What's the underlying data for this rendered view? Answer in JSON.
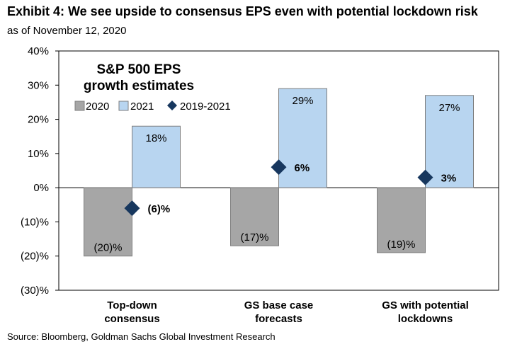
{
  "header": {
    "title": "Exhibit 4: We see upside to consensus EPS even with potential lockdown risk",
    "subtitle": "as of November 12, 2020"
  },
  "footer": {
    "source": "Source: Bloomberg, Goldman Sachs Global Investment Research"
  },
  "chart_data": {
    "type": "bar",
    "title": "S&P 500 EPS growth estimates",
    "title_lines": [
      "S&P 500 EPS",
      "growth estimates"
    ],
    "xlabel": "",
    "ylabel": "",
    "categories": [
      "Top-down consensus",
      "GS base case forecasts",
      "GS with potential lockdowns"
    ],
    "category_lines": [
      [
        "Top-down",
        "consensus"
      ],
      [
        "GS base case",
        "forecasts"
      ],
      [
        "GS with potential",
        "lockdowns"
      ]
    ],
    "series": [
      {
        "name": "2020",
        "type": "bar",
        "color": "#a6a6a6",
        "values": [
          -20,
          -17,
          -19
        ],
        "labels": [
          "(20)%",
          "(17)%",
          "(19)%"
        ]
      },
      {
        "name": "2021",
        "type": "bar",
        "color": "#b8d5f0",
        "values": [
          18,
          29,
          27
        ],
        "labels": [
          "18%",
          "29%",
          "27%"
        ]
      },
      {
        "name": "2019-2021",
        "type": "marker",
        "color": "#17375e",
        "values": [
          -6,
          6,
          3
        ],
        "labels": [
          "(6)%",
          "6%",
          "3%"
        ]
      }
    ],
    "ylim": [
      -30,
      40
    ],
    "yticks": [
      40,
      30,
      20,
      10,
      0,
      -10,
      -20,
      -30
    ],
    "ytick_labels": [
      "40%",
      "30%",
      "20%",
      "10%",
      "0%",
      "(10)%",
      "(20)%",
      "(30)%"
    ],
    "grid": false,
    "legend_position": "top-left, inside plot"
  }
}
